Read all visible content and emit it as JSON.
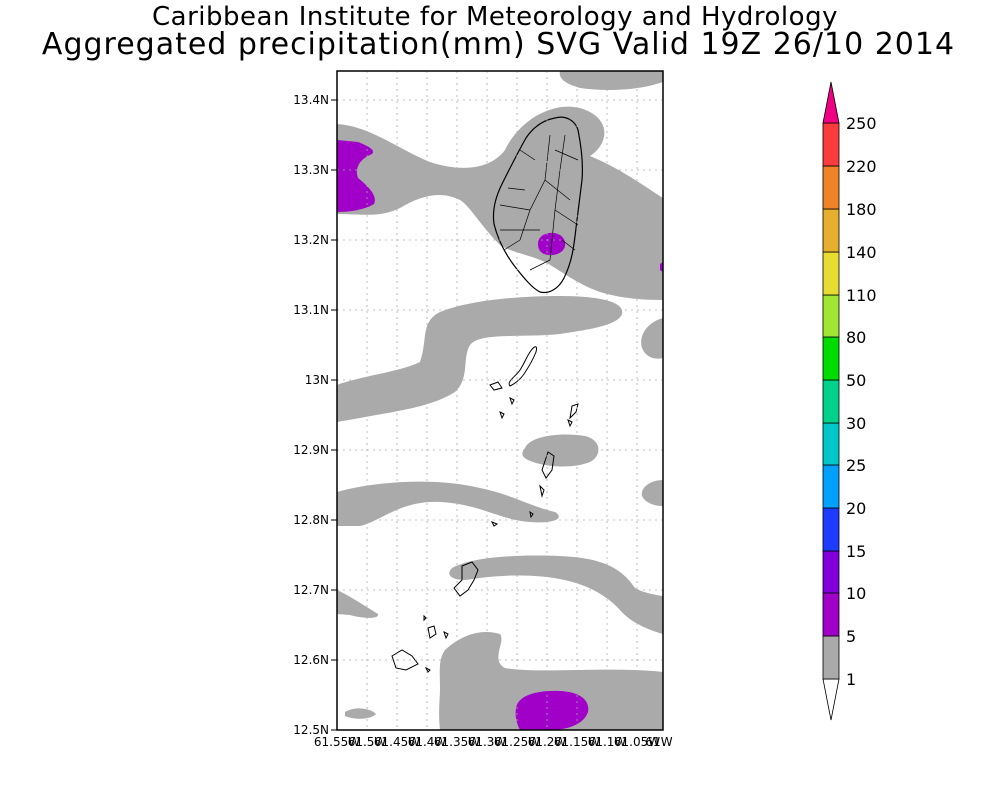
{
  "header": {
    "line1": "Caribbean Institute for Meteorology and Hydrology",
    "line2": "Aggregated precipitation(mm) SVG Valid 19Z 26/10 2014"
  },
  "map": {
    "lat_labels": [
      "13.4N",
      "13.3N",
      "13.2N",
      "13.1N",
      "13N",
      "12.9N",
      "12.8N",
      "12.7N",
      "12.6N",
      "12.5N"
    ],
    "lon_labels": [
      "61.55W",
      "61.5W",
      "61.45W",
      "61.4W",
      "61.35W",
      "61.3W",
      "61.25W",
      "61.2W",
      "61.15W",
      "61.1W",
      "61.05W",
      "61W"
    ],
    "extent": {
      "lat_min": 12.5,
      "lat_max": 13.44,
      "lon_min": -61.55,
      "lon_max": -61.0
    }
  },
  "legend": {
    "levels": [
      "1",
      "5",
      "10",
      "15",
      "20",
      "25",
      "30",
      "50",
      "80",
      "110",
      "140",
      "180",
      "220",
      "250"
    ],
    "colors": [
      "#ffffff",
      "#aaaaaa",
      "#a000c8",
      "#8200dc",
      "#1e3cff",
      "#00a0ff",
      "#00c8c8",
      "#00d28c",
      "#00dc00",
      "#a0e632",
      "#e6dc32",
      "#e6af2d",
      "#f08228",
      "#fa3c3c",
      "#f00082"
    ]
  }
}
